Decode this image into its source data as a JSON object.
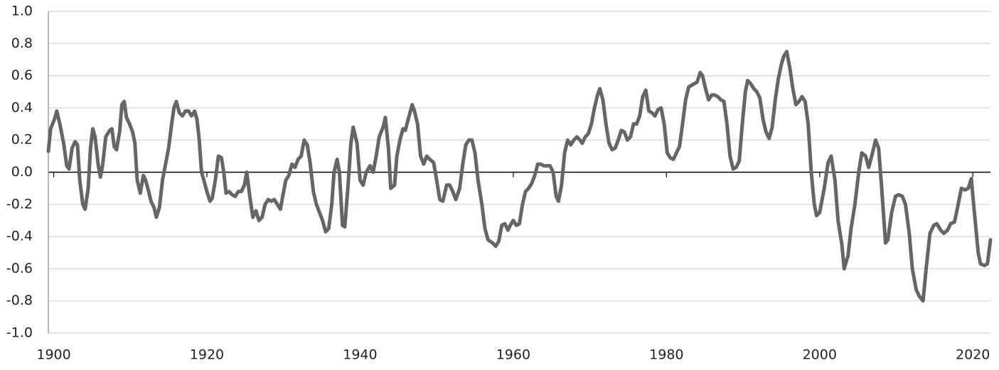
{
  "chart_data": {
    "type": "line",
    "color": "#666666",
    "grid": true,
    "xlim": [
      1899.3,
      2022.3
    ],
    "ylim": [
      -1.0,
      1.0
    ],
    "xticks": [
      1900,
      1920,
      1940,
      1960,
      1980,
      2000,
      2020
    ],
    "yticks": [
      {
        "value": -1.0,
        "label": "-1.0"
      },
      {
        "value": -0.8,
        "label": "-0.8"
      },
      {
        "value": -0.6,
        "label": "-0.6"
      },
      {
        "value": -0.4,
        "label": "-0.4"
      },
      {
        "value": -0.2,
        "label": "-0.2"
      },
      {
        "value": 0.0,
        "label": "0.0"
      },
      {
        "value": 0.2,
        "label": "0.2"
      },
      {
        "value": 0.4,
        "label": "0.4"
      },
      {
        "value": 0.6,
        "label": "0.6"
      },
      {
        "value": 0.8,
        "label": "0.8"
      },
      {
        "value": 1.0,
        "label": "1.0"
      }
    ],
    "x": [
      1899.3,
      1899.6,
      1900.1,
      1900.4,
      1900.8,
      1901.3,
      1901.7,
      1902.0,
      1902.4,
      1902.8,
      1903.1,
      1903.4,
      1903.8,
      1904.1,
      1904.5,
      1904.8,
      1905.1,
      1905.4,
      1905.8,
      1906.1,
      1906.4,
      1906.8,
      1907.3,
      1907.6,
      1907.9,
      1908.2,
      1908.6,
      1908.9,
      1909.2,
      1909.5,
      1909.9,
      1910.3,
      1910.6,
      1910.9,
      1911.3,
      1911.7,
      1912.0,
      1912.4,
      1912.7,
      1913.1,
      1913.4,
      1913.8,
      1914.2,
      1914.6,
      1915.0,
      1915.4,
      1915.7,
      1916.0,
      1916.4,
      1916.8,
      1917.2,
      1917.6,
      1918.0,
      1918.4,
      1918.7,
      1919.0,
      1919.3,
      1919.6,
      1920.0,
      1920.4,
      1920.7,
      1921.1,
      1921.5,
      1921.9,
      1922.2,
      1922.5,
      1922.9,
      1923.3,
      1923.7,
      1924.1,
      1924.5,
      1924.9,
      1925.2,
      1925.6,
      1926.0,
      1926.4,
      1926.8,
      1927.2,
      1927.6,
      1928.0,
      1928.4,
      1928.8,
      1929.2,
      1929.6,
      1929.9,
      1930.3,
      1930.7,
      1931.1,
      1931.5,
      1931.9,
      1932.3,
      1932.7,
      1933.1,
      1933.5,
      1933.9,
      1934.3,
      1934.7,
      1935.1,
      1935.5,
      1935.9,
      1936.3,
      1936.6,
      1937.0,
      1937.3,
      1937.7,
      1938.0,
      1938.4,
      1938.8,
      1939.1,
      1939.6,
      1940.0,
      1940.4,
      1940.8,
      1941.3,
      1941.7,
      1942.1,
      1942.5,
      1943.0,
      1943.3,
      1943.7,
      1944.0,
      1944.5,
      1944.8,
      1945.2,
      1945.6,
      1945.9,
      1946.4,
      1946.8,
      1947.1,
      1947.5,
      1947.9,
      1948.3,
      1948.7,
      1949.1,
      1949.6,
      1950.0,
      1950.4,
      1950.8,
      1951.3,
      1951.7,
      1952.1,
      1952.5,
      1953.0,
      1953.4,
      1953.8,
      1954.2,
      1954.6,
      1955.0,
      1955.4,
      1955.9,
      1956.3,
      1956.7,
      1957.3,
      1957.7,
      1958.1,
      1958.5,
      1958.9,
      1959.3,
      1959.6,
      1960.0,
      1960.4,
      1960.8,
      1961.2,
      1961.6,
      1962.0,
      1962.4,
      1962.8,
      1963.2,
      1963.6,
      1964.0,
      1964.4,
      1964.8,
      1965.2,
      1965.6,
      1965.9,
      1966.3,
      1966.7,
      1967.1,
      1967.5,
      1967.9,
      1968.3,
      1968.7,
      1969.0,
      1969.4,
      1969.8,
      1970.2,
      1970.6,
      1971.0,
      1971.3,
      1971.7,
      1972.1,
      1972.5,
      1972.9,
      1973.3,
      1973.7,
      1974.1,
      1974.5,
      1974.9,
      1975.3,
      1975.7,
      1976.1,
      1976.5,
      1976.9,
      1977.3,
      1977.7,
      1978.1,
      1978.5,
      1978.9,
      1979.3,
      1979.7,
      1980.1,
      1980.5,
      1980.9,
      1981.3,
      1981.7,
      1982.1,
      1982.5,
      1982.9,
      1983.6,
      1984.0,
      1984.4,
      1984.7,
      1985.1,
      1985.5,
      1985.9,
      1986.3,
      1986.7,
      1987.1,
      1987.5,
      1987.9,
      1988.3,
      1988.7,
      1989.1,
      1989.5,
      1989.9,
      1990.3,
      1990.6,
      1991.0,
      1991.4,
      1991.8,
      1992.2,
      1992.6,
      1993.0,
      1993.4,
      1993.8,
      1994.2,
      1994.6,
      1995.0,
      1995.3,
      1995.7,
      1996.1,
      1996.5,
      1996.9,
      1997.3,
      1997.7,
      1998.1,
      1998.5,
      1998.9,
      1999.3,
      1999.6,
      2000.0,
      2000.6,
      2001.1,
      2001.5,
      2002.0,
      2002.4,
      2002.9,
      2003.2,
      2003.7,
      2004.1,
      2004.6,
      2005.1,
      2005.5,
      2006.0,
      2006.4,
      2006.9,
      2007.3,
      2007.7,
      2008.1,
      2008.6,
      2008.9,
      2009.4,
      2009.9,
      2010.3,
      2010.8,
      2011.2,
      2011.7,
      2012.1,
      2012.6,
      2013.0,
      2013.5,
      2013.9,
      2014.4,
      2014.9,
      2015.3,
      2015.8,
      2016.2,
      2016.7,
      2017.1,
      2017.6,
      2018.0,
      2018.5,
      2019.0,
      2019.4,
      2019.8,
      2020.2,
      2020.7,
      2021.0,
      2021.5,
      2021.9,
      2022.3
    ],
    "values": [
      0.13,
      0.27,
      0.33,
      0.38,
      0.3,
      0.18,
      0.04,
      0.02,
      0.15,
      0.19,
      0.17,
      -0.05,
      -0.2,
      -0.23,
      -0.1,
      0.15,
      0.27,
      0.22,
      0.05,
      -0.03,
      0.05,
      0.22,
      0.26,
      0.27,
      0.16,
      0.14,
      0.25,
      0.42,
      0.44,
      0.34,
      0.3,
      0.25,
      0.18,
      -0.05,
      -0.13,
      -0.02,
      -0.05,
      -0.12,
      -0.18,
      -0.22,
      -0.28,
      -0.22,
      -0.05,
      0.05,
      0.15,
      0.3,
      0.4,
      0.44,
      0.37,
      0.35,
      0.38,
      0.38,
      0.35,
      0.38,
      0.33,
      0.2,
      0.0,
      -0.05,
      -0.12,
      -0.18,
      -0.16,
      -0.05,
      0.1,
      0.09,
      0.0,
      -0.13,
      -0.12,
      -0.14,
      -0.15,
      -0.12,
      -0.12,
      -0.08,
      0.0,
      -0.15,
      -0.28,
      -0.24,
      -0.3,
      -0.28,
      -0.2,
      -0.17,
      -0.18,
      -0.17,
      -0.2,
      -0.23,
      -0.15,
      -0.05,
      -0.02,
      0.05,
      0.03,
      0.08,
      0.1,
      0.2,
      0.17,
      0.05,
      -0.12,
      -0.2,
      -0.25,
      -0.3,
      -0.37,
      -0.35,
      -0.2,
      0.0,
      0.08,
      0.0,
      -0.33,
      -0.34,
      -0.1,
      0.18,
      0.28,
      0.18,
      -0.05,
      -0.08,
      0.0,
      0.04,
      0.0,
      0.1,
      0.22,
      0.28,
      0.34,
      0.15,
      -0.1,
      -0.08,
      0.1,
      0.2,
      0.27,
      0.26,
      0.35,
      0.42,
      0.38,
      0.3,
      0.1,
      0.05,
      0.1,
      0.08,
      0.06,
      -0.05,
      -0.17,
      -0.18,
      -0.08,
      -0.08,
      -0.12,
      -0.17,
      -0.1,
      0.05,
      0.17,
      0.2,
      0.2,
      0.12,
      -0.05,
      -0.2,
      -0.35,
      -0.42,
      -0.44,
      -0.46,
      -0.43,
      -0.33,
      -0.32,
      -0.36,
      -0.33,
      -0.3,
      -0.33,
      -0.32,
      -0.2,
      -0.12,
      -0.1,
      -0.07,
      -0.02,
      0.05,
      0.05,
      0.04,
      0.04,
      0.04,
      0.0,
      -0.15,
      -0.18,
      -0.08,
      0.12,
      0.2,
      0.17,
      0.2,
      0.22,
      0.2,
      0.18,
      0.22,
      0.24,
      0.3,
      0.4,
      0.48,
      0.52,
      0.45,
      0.3,
      0.18,
      0.14,
      0.15,
      0.2,
      0.26,
      0.25,
      0.2,
      0.22,
      0.3,
      0.3,
      0.35,
      0.47,
      0.51,
      0.38,
      0.37,
      0.35,
      0.39,
      0.4,
      0.3,
      0.12,
      0.09,
      0.08,
      0.12,
      0.16,
      0.3,
      0.45,
      0.53,
      0.55,
      0.56,
      0.62,
      0.6,
      0.52,
      0.45,
      0.48,
      0.48,
      0.47,
      0.45,
      0.44,
      0.3,
      0.1,
      0.02,
      0.03,
      0.07,
      0.3,
      0.5,
      0.57,
      0.55,
      0.52,
      0.5,
      0.46,
      0.33,
      0.25,
      0.21,
      0.28,
      0.45,
      0.58,
      0.67,
      0.72,
      0.75,
      0.65,
      0.52,
      0.42,
      0.44,
      0.47,
      0.44,
      0.3,
      0.0,
      -0.2,
      -0.27,
      -0.25,
      -0.1,
      0.06,
      0.1,
      -0.05,
      -0.3,
      -0.45,
      -0.6,
      -0.52,
      -0.35,
      -0.2,
      0.0,
      0.12,
      0.1,
      0.03,
      0.12,
      0.2,
      0.15,
      -0.1,
      -0.44,
      -0.42,
      -0.25,
      -0.15,
      -0.14,
      -0.15,
      -0.2,
      -0.38,
      -0.6,
      -0.73,
      -0.77,
      -0.8,
      -0.6,
      -0.38,
      -0.33,
      -0.32,
      -0.36,
      -0.38,
      -0.36,
      -0.32,
      -0.31,
      -0.22,
      -0.1,
      -0.11,
      -0.1,
      -0.04,
      -0.25,
      -0.5,
      -0.57,
      -0.58,
      -0.57,
      -0.42
    ]
  }
}
